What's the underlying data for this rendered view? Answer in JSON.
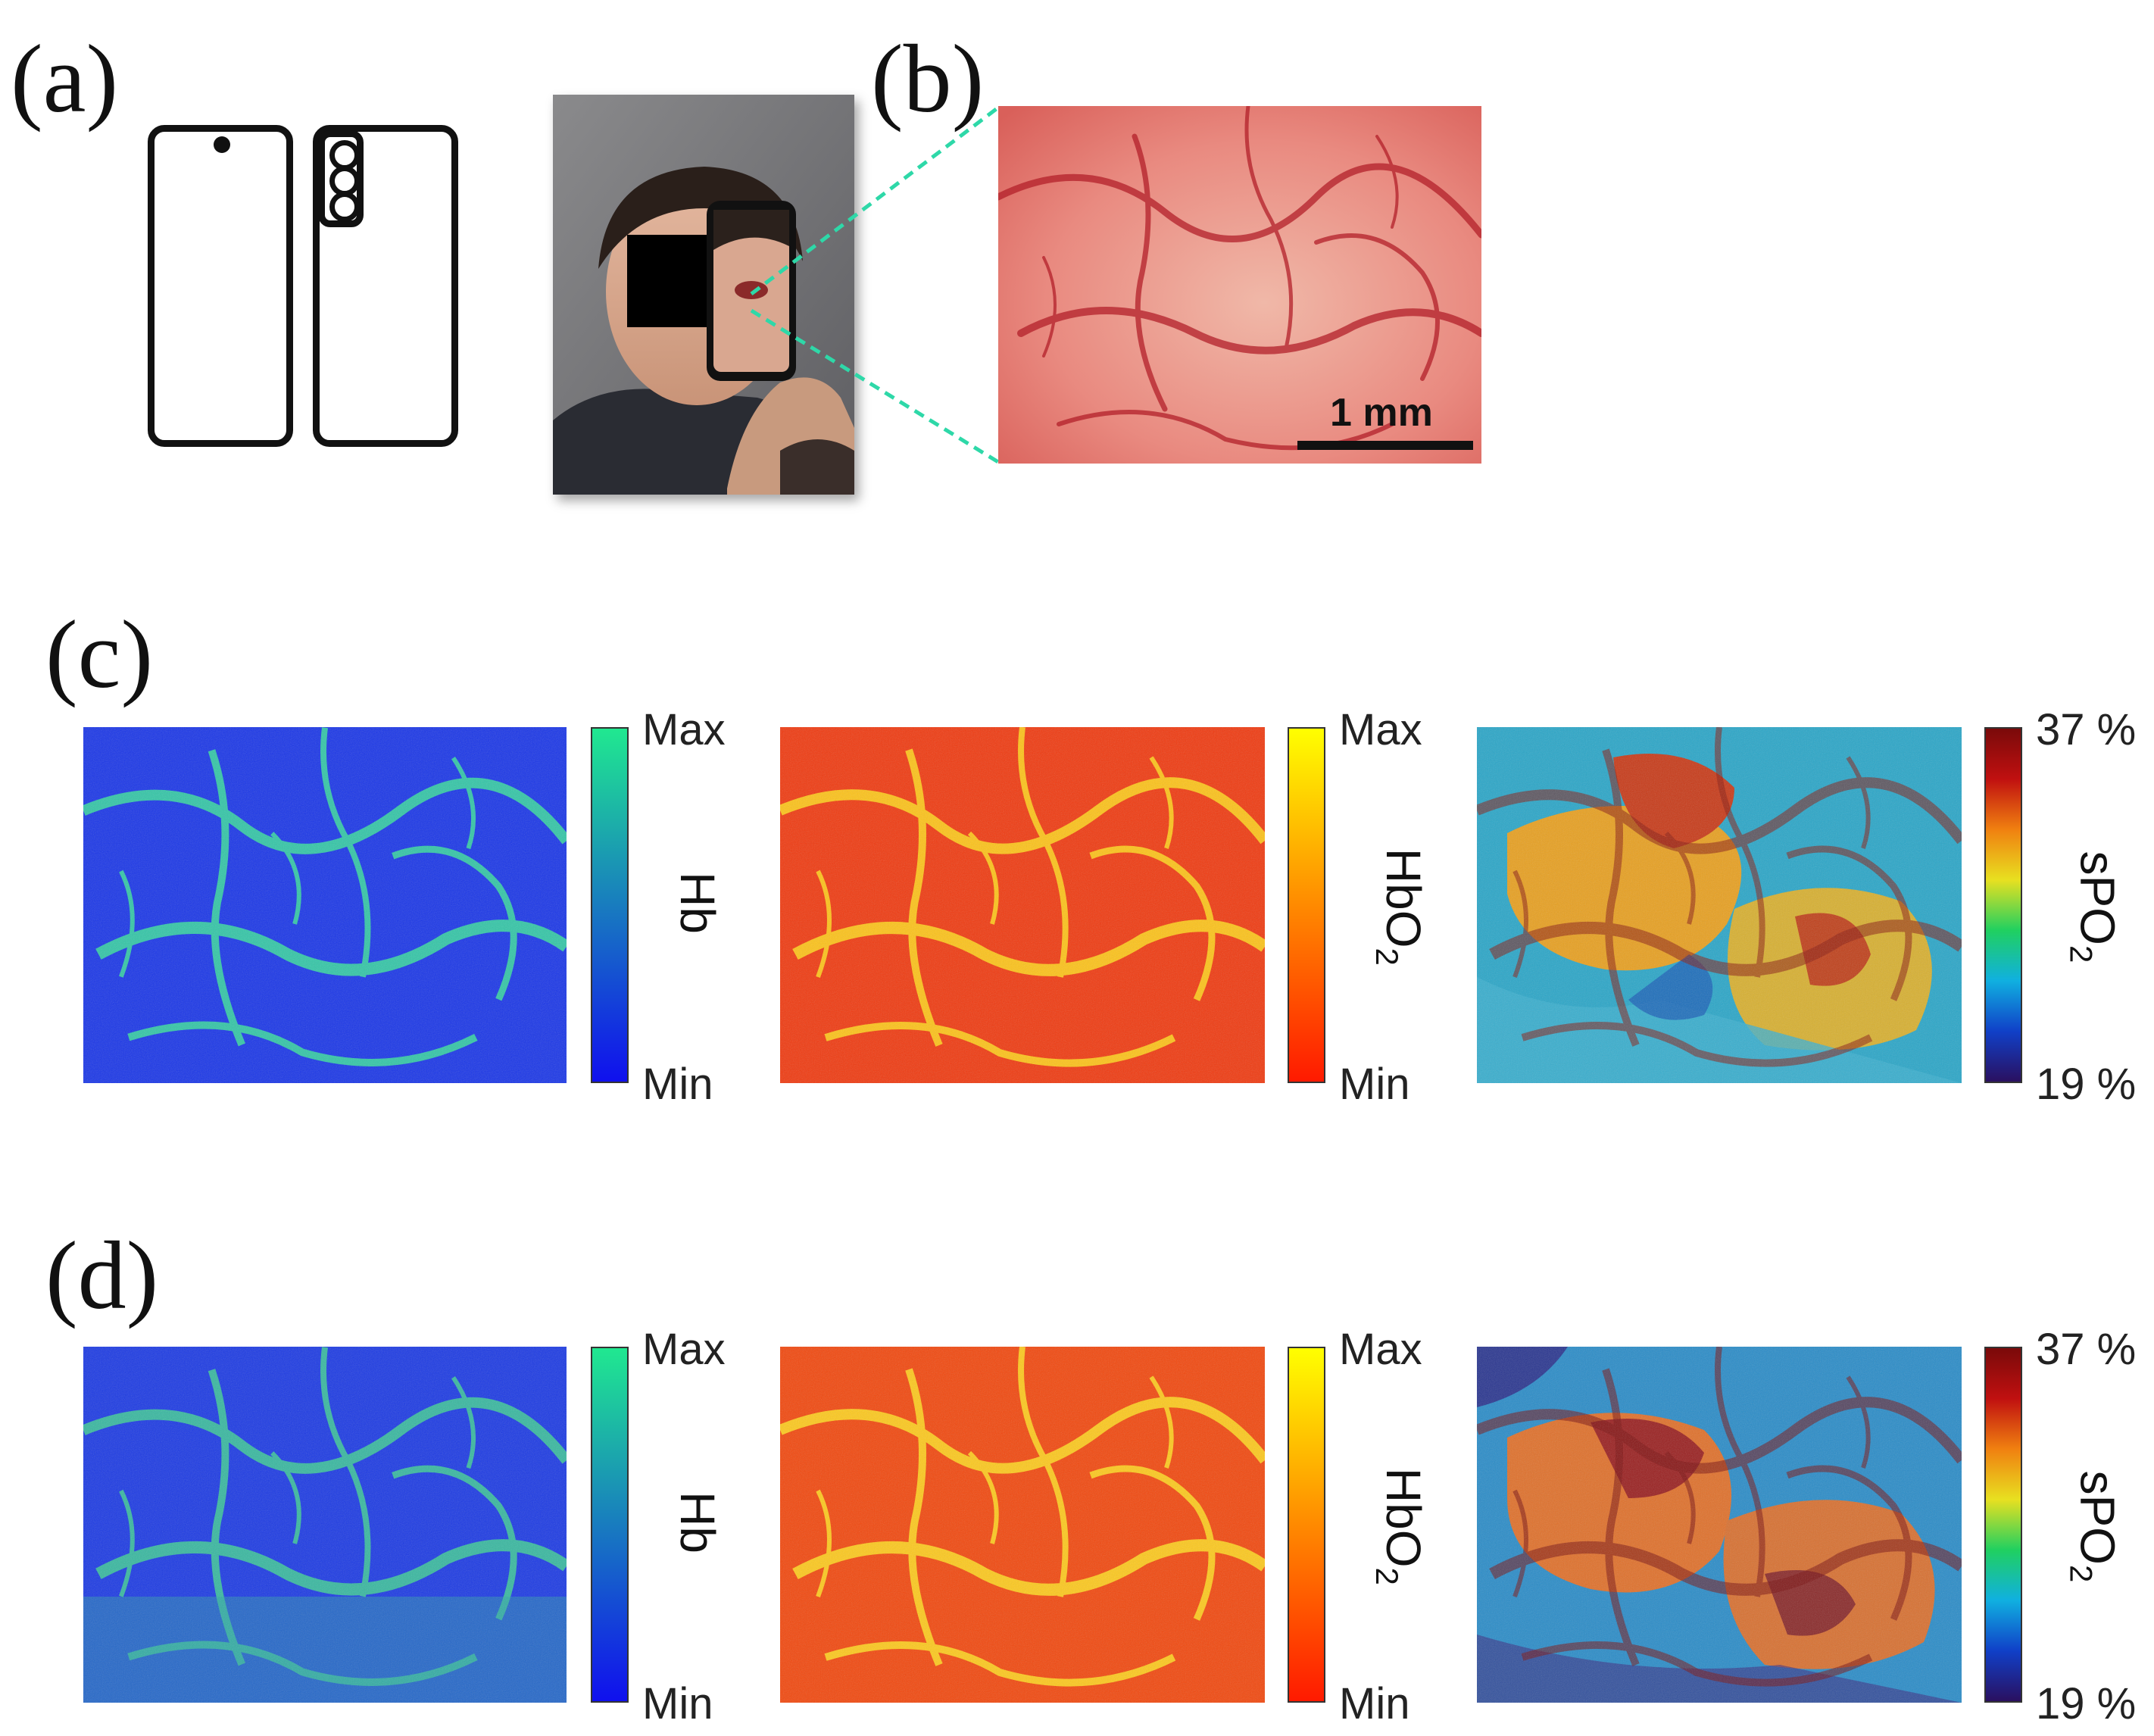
{
  "panel_labels": {
    "a": "(a)",
    "b": "(b)",
    "c": "(c)",
    "d": "(d)"
  },
  "scale_bar": "1 mm",
  "colorbars": {
    "hb": {
      "title": "Hb",
      "max": "Max",
      "min": "Min"
    },
    "hbo2": {
      "title_main": "HbO",
      "title_sub": "2",
      "max": "Max",
      "min": "Min"
    },
    "spo2": {
      "title_main": "sPO",
      "title_sub": "2",
      "max": "37 %",
      "min": "19 %"
    }
  },
  "colors": {
    "hb_low": "#1010ee",
    "hb_high": "#20e890",
    "hbo2_low": "#ff1a00",
    "hbo2_high": "#ffff00",
    "connector": "#2ed8a8"
  }
}
